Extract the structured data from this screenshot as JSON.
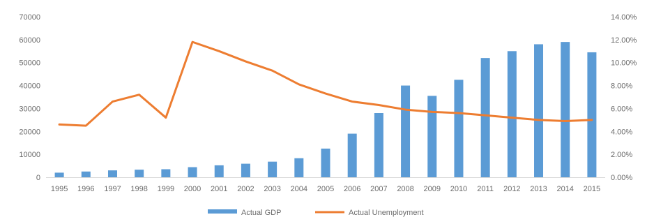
{
  "chart_data": {
    "type": "bar",
    "categories": [
      "1995",
      "1996",
      "1997",
      "1998",
      "1999",
      "2000",
      "2001",
      "2002",
      "2003",
      "2004",
      "2005",
      "2006",
      "2007",
      "2008",
      "2009",
      "2010",
      "2011",
      "2012",
      "2013",
      "2014",
      "2015"
    ],
    "series": [
      {
        "name": "Actual  GDP",
        "type": "bar",
        "axis": "left",
        "color": "#5b9bd5",
        "values": [
          2000,
          2500,
          3000,
          3300,
          3500,
          4400,
          5200,
          5900,
          6800,
          8300,
          12500,
          19000,
          28000,
          40000,
          35500,
          42500,
          52000,
          55000,
          58000,
          59000,
          54500
        ]
      },
      {
        "name": "Actual Unemployment",
        "type": "line",
        "axis": "right",
        "color": "#ed7d31",
        "values": [
          4.6,
          4.5,
          6.6,
          7.2,
          5.2,
          11.8,
          11.0,
          10.1,
          9.3,
          8.1,
          7.3,
          6.6,
          6.3,
          5.9,
          5.7,
          5.6,
          5.4,
          5.2,
          5.0,
          4.9,
          5.0
        ]
      }
    ],
    "y_left": {
      "ylim": [
        0,
        70000
      ],
      "ticks": [
        "0",
        "10000",
        "20000",
        "30000",
        "40000",
        "50000",
        "60000",
        "70000"
      ]
    },
    "y_right": {
      "ylim": [
        0,
        14
      ],
      "ticks": [
        "0.00%",
        "2.00%",
        "4.00%",
        "6.00%",
        "8.00%",
        "10.00%",
        "12.00%",
        "14.00%"
      ]
    },
    "title": "",
    "xlabel": "",
    "ylabel": "",
    "grid": false,
    "legend": {
      "position": "bottom",
      "entries": [
        "Actual  GDP",
        "Actual Unemployment"
      ]
    }
  }
}
